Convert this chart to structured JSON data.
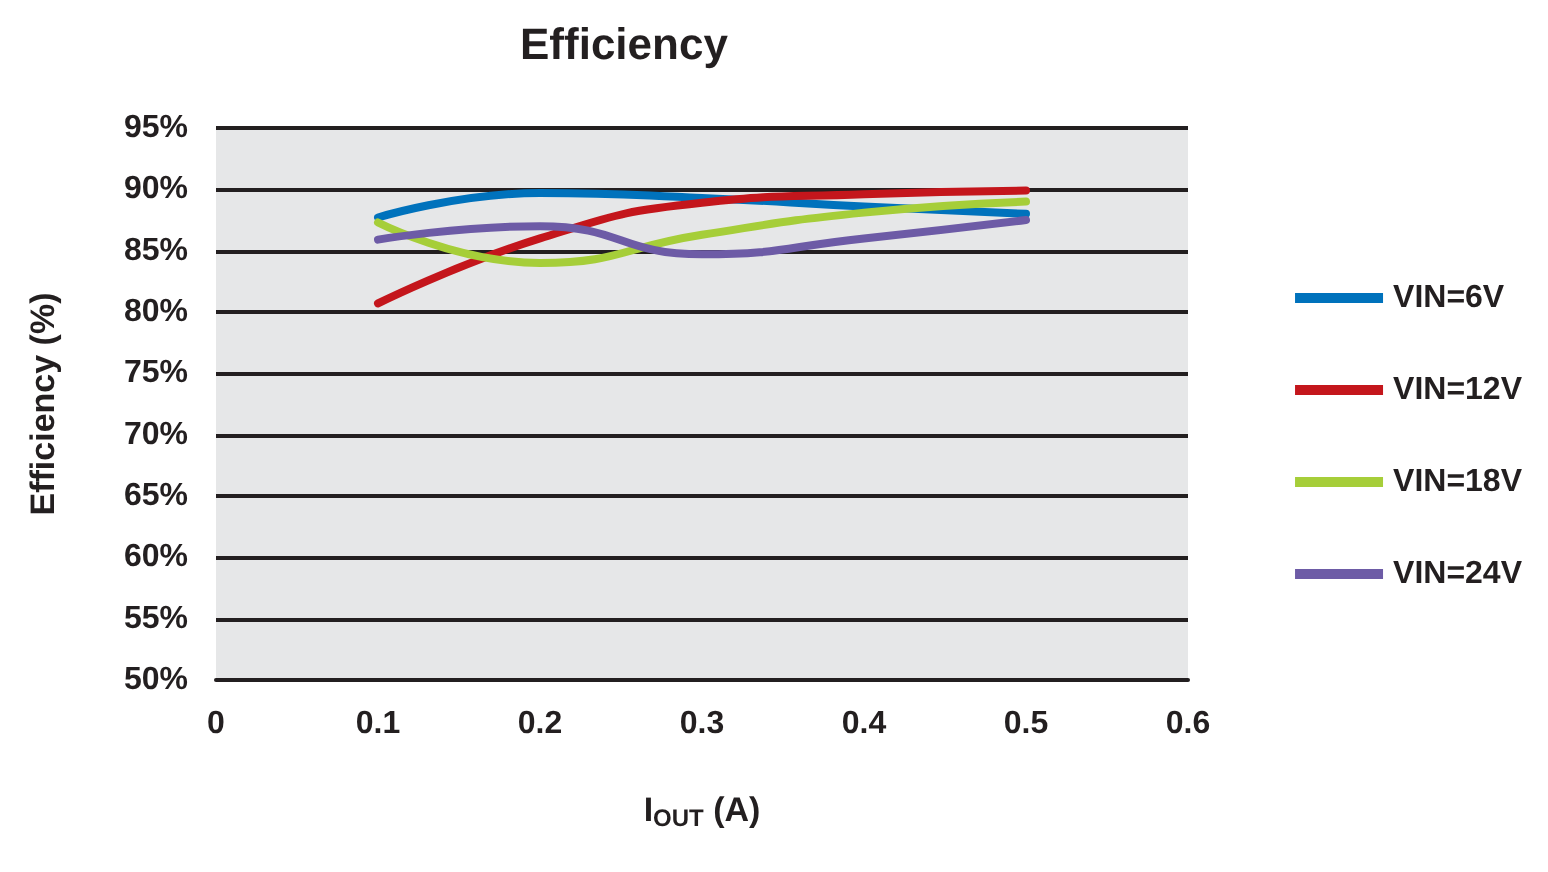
{
  "chart_data": {
    "type": "line",
    "title": "Efficiency",
    "xlabel": "I$_{OUT}$ (A)",
    "ylabel": "Efficiency (%)",
    "x": [
      0.1,
      0.2,
      0.3,
      0.4,
      0.5
    ],
    "series": [
      {
        "name": "VIN=6V",
        "color": "#0072bc",
        "values": [
          87.7,
          89.7,
          89.3,
          88.6,
          88.0
        ]
      },
      {
        "name": "VIN=12V",
        "color": "#c4161c",
        "values": [
          80.7,
          86.0,
          88.9,
          89.6,
          89.9
        ]
      },
      {
        "name": "VIN=18V",
        "color": "#a6ce39",
        "values": [
          87.3,
          84.0,
          86.3,
          88.1,
          89.0
        ]
      },
      {
        "name": "VIN=24V",
        "color": "#6d5ba6",
        "values": [
          85.9,
          87.0,
          84.7,
          86.0,
          87.5
        ]
      }
    ],
    "xlim": [
      0,
      0.6
    ],
    "xticks": [
      0,
      0.1,
      0.2,
      0.3,
      0.4,
      0.5,
      0.6
    ],
    "ylim": [
      50,
      95
    ],
    "yticks": [
      {
        "value": 50,
        "label": "50%"
      },
      {
        "value": 55,
        "label": "55%"
      },
      {
        "value": 60,
        "label": "60%"
      },
      {
        "value": 65,
        "label": "65%"
      },
      {
        "value": 70,
        "label": "70%"
      },
      {
        "value": 75,
        "label": "75%"
      },
      {
        "value": 80,
        "label": "80%"
      },
      {
        "value": 85,
        "label": "85%"
      },
      {
        "value": 90,
        "label": "90%"
      },
      {
        "value": 95,
        "label": "95%"
      }
    ],
    "grid": "y",
    "legend": "right",
    "marker": "none",
    "line_style": "solid"
  }
}
